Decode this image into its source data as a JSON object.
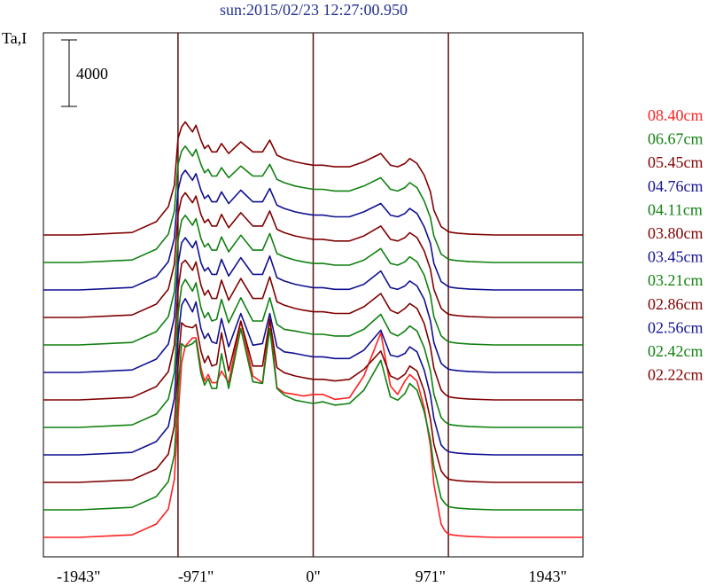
{
  "title": "sun:2015/02/23 12:27:00.950",
  "chart_data": {
    "type": "line",
    "title": "sun:2015/02/23 12:27:00.950",
    "ylabel": "Ta,I",
    "scale_bar_label": "4000",
    "xlim": [
      -2235,
      2235
    ],
    "x_ticks": [
      {
        "value": -1943,
        "label": "-1943\""
      },
      {
        "value": -971,
        "label": "-971\""
      },
      {
        "value": 0,
        "label": "0\""
      },
      {
        "value": 971,
        "label": "971\""
      },
      {
        "value": 1943,
        "label": "1943\""
      }
    ],
    "vlines": [
      -1120,
      0,
      1120
    ],
    "grid": false,
    "legend_position": "right",
    "x": [
      -2235,
      -1943,
      -1500,
      -1300,
      -1200,
      -1150,
      -1120,
      -1090,
      -1060,
      -1000,
      -971,
      -930,
      -900,
      -870,
      -840,
      -800,
      -760,
      -700,
      -600,
      -500,
      -420,
      -360,
      -300,
      -240,
      -150,
      -80,
      0,
      80,
      180,
      300,
      420,
      560,
      640,
      700,
      760,
      800,
      860,
      920,
      971,
      1000,
      1060,
      1090,
      1120,
      1150,
      1200,
      1300,
      1500,
      1943,
      2235
    ],
    "series": [
      {
        "name": "08.40cm",
        "color": "#ff2020",
        "offset": 0,
        "values": [
          0,
          0,
          150,
          800,
          1700,
          3500,
          7200,
          10500,
          11500,
          12000,
          12000,
          10200,
          9400,
          9800,
          9300,
          9300,
          10000,
          9300,
          13000,
          9700,
          9300,
          13200,
          9000,
          8700,
          8600,
          8500,
          8600,
          8600,
          8300,
          8400,
          9700,
          12300,
          9100,
          8600,
          9400,
          9800,
          9400,
          7800,
          5500,
          3200,
          800,
          400,
          200,
          150,
          100,
          50,
          0,
          0,
          0
        ]
      },
      {
        "name": "06.67cm",
        "color": "#108010",
        "offset": 1,
        "values": [
          0,
          0,
          150,
          800,
          1700,
          3300,
          7000,
          10000,
          9800,
          10000,
          10200,
          8200,
          7500,
          7900,
          7300,
          7300,
          9400,
          7300,
          10900,
          7700,
          7600,
          10900,
          7300,
          6900,
          6600,
          6500,
          6400,
          6500,
          6300,
          6400,
          7200,
          9000,
          6800,
          6600,
          7000,
          7600,
          7200,
          5900,
          4200,
          2600,
          700,
          400,
          200,
          150,
          100,
          50,
          0,
          0,
          0
        ]
      },
      {
        "name": "05.45cm",
        "color": "#800000",
        "offset": 2,
        "values": [
          0,
          0,
          150,
          800,
          1700,
          3400,
          7000,
          9600,
          9400,
          9300,
          9500,
          7900,
          7200,
          7600,
          7000,
          7100,
          9000,
          6700,
          9700,
          7000,
          7000,
          9800,
          6900,
          6600,
          6400,
          6300,
          6200,
          6200,
          6100,
          6200,
          6800,
          7900,
          6400,
          6200,
          6500,
          7000,
          6700,
          5500,
          3800,
          2300,
          700,
          400,
          200,
          150,
          100,
          50,
          0,
          0,
          0
        ]
      },
      {
        "name": "04.76cm",
        "color": "#101090",
        "offset": 3,
        "values": [
          0,
          0,
          150,
          800,
          1700,
          3400,
          7000,
          9000,
          9400,
          8600,
          9200,
          7600,
          7000,
          7300,
          6800,
          6700,
          8200,
          6500,
          8500,
          6600,
          6700,
          8500,
          6500,
          6200,
          6100,
          6000,
          5900,
          5900,
          5800,
          5800,
          6300,
          7500,
          6000,
          5900,
          6100,
          6500,
          6200,
          5100,
          3600,
          2200,
          600,
          350,
          200,
          150,
          100,
          50,
          0,
          0,
          0
        ]
      },
      {
        "name": "04.11cm",
        "color": "#108010",
        "offset": 4,
        "values": [
          0,
          0,
          150,
          800,
          1700,
          3300,
          6800,
          8500,
          8900,
          8200,
          8700,
          7200,
          6600,
          6900,
          6400,
          6500,
          7700,
          6300,
          7800,
          6400,
          6400,
          7800,
          6200,
          5900,
          5800,
          5700,
          5600,
          5600,
          5500,
          5500,
          5900,
          6800,
          5700,
          5500,
          5800,
          6100,
          5800,
          4800,
          3400,
          2000,
          600,
          350,
          200,
          150,
          100,
          50,
          0,
          0,
          0
        ]
      },
      {
        "name": "03.80cm",
        "color": "#800000",
        "offset": 5,
        "values": [
          0,
          0,
          150,
          800,
          1700,
          3300,
          6600,
          8200,
          8400,
          7800,
          8300,
          6900,
          6300,
          6600,
          6100,
          6100,
          7200,
          6000,
          7300,
          6100,
          6100,
          7400,
          5900,
          5700,
          5500,
          5400,
          5300,
          5300,
          5200,
          5200,
          5600,
          6400,
          5400,
          5200,
          5500,
          5800,
          5500,
          4600,
          3200,
          1900,
          600,
          350,
          200,
          150,
          100,
          50,
          0,
          0,
          0
        ]
      },
      {
        "name": "03.45cm",
        "color": "#101090",
        "offset": 6,
        "values": [
          0,
          0,
          150,
          800,
          1700,
          3300,
          6500,
          7800,
          8100,
          7500,
          7900,
          6600,
          6100,
          6300,
          5900,
          5900,
          6800,
          5800,
          6900,
          5900,
          5900,
          7000,
          5700,
          5500,
          5300,
          5200,
          5100,
          5100,
          5000,
          5000,
          5300,
          6100,
          5100,
          5000,
          5200,
          5500,
          5200,
          4400,
          3100,
          1800,
          550,
          350,
          200,
          150,
          100,
          50,
          0,
          0,
          0
        ]
      },
      {
        "name": "03.21cm",
        "color": "#108010",
        "offset": 7,
        "values": [
          0,
          0,
          150,
          800,
          1700,
          3200,
          6300,
          7500,
          7800,
          7200,
          7600,
          6400,
          5900,
          6100,
          5700,
          5700,
          6500,
          5600,
          6600,
          5700,
          5700,
          6700,
          5500,
          5300,
          5100,
          5000,
          4900,
          4900,
          4800,
          4800,
          5100,
          5800,
          4900,
          4800,
          5000,
          5300,
          5000,
          4200,
          3000,
          1700,
          550,
          350,
          200,
          150,
          100,
          50,
          0,
          0,
          0
        ]
      },
      {
        "name": "02.86cm",
        "color": "#800000",
        "offset": 8,
        "values": [
          0,
          0,
          150,
          800,
          1700,
          3200,
          6200,
          7200,
          7500,
          6900,
          7300,
          6200,
          5700,
          5900,
          5500,
          5500,
          6200,
          5400,
          6300,
          5500,
          5500,
          6400,
          5300,
          5100,
          4900,
          4800,
          4700,
          4700,
          4600,
          4600,
          4900,
          5500,
          4700,
          4600,
          4800,
          5100,
          4800,
          4000,
          2900,
          1700,
          550,
          350,
          200,
          150,
          100,
          50,
          0,
          0,
          0
        ]
      },
      {
        "name": "02.56cm",
        "color": "#101090",
        "offset": 9,
        "values": [
          0,
          0,
          150,
          800,
          1700,
          3100,
          6000,
          6900,
          7200,
          6600,
          7000,
          6000,
          5500,
          5700,
          5300,
          5300,
          5900,
          5200,
          6000,
          5300,
          5300,
          6100,
          5100,
          4900,
          4700,
          4600,
          4500,
          4500,
          4400,
          4400,
          4700,
          5200,
          4500,
          4400,
          4600,
          4900,
          4600,
          3800,
          2800,
          1600,
          500,
          350,
          200,
          150,
          100,
          50,
          0,
          0,
          0
        ]
      },
      {
        "name": "02.42cm",
        "color": "#108010",
        "offset": 10,
        "values": [
          0,
          0,
          150,
          800,
          1700,
          3100,
          5900,
          6700,
          7000,
          6400,
          6800,
          5900,
          5400,
          5600,
          5200,
          5200,
          5700,
          5100,
          5800,
          5200,
          5200,
          5900,
          5000,
          4800,
          4600,
          4500,
          4400,
          4400,
          4300,
          4300,
          4600,
          5100,
          4400,
          4300,
          4500,
          4800,
          4500,
          3700,
          2700,
          1600,
          500,
          350,
          200,
          150,
          100,
          50,
          0,
          0,
          0
        ]
      },
      {
        "name": "02.22cm",
        "color": "#800000",
        "offset": 11,
        "values": [
          0,
          0,
          150,
          800,
          1700,
          3000,
          5800,
          6500,
          6800,
          6200,
          6600,
          5700,
          5200,
          5400,
          5000,
          5000,
          5500,
          4900,
          5600,
          5000,
          5000,
          5700,
          4800,
          4600,
          4400,
          4300,
          4200,
          4200,
          4100,
          4100,
          4400,
          4900,
          4200,
          4100,
          4300,
          4600,
          4300,
          3600,
          2600,
          1500,
          500,
          350,
          200,
          150,
          100,
          50,
          0,
          0,
          0
        ]
      }
    ]
  }
}
